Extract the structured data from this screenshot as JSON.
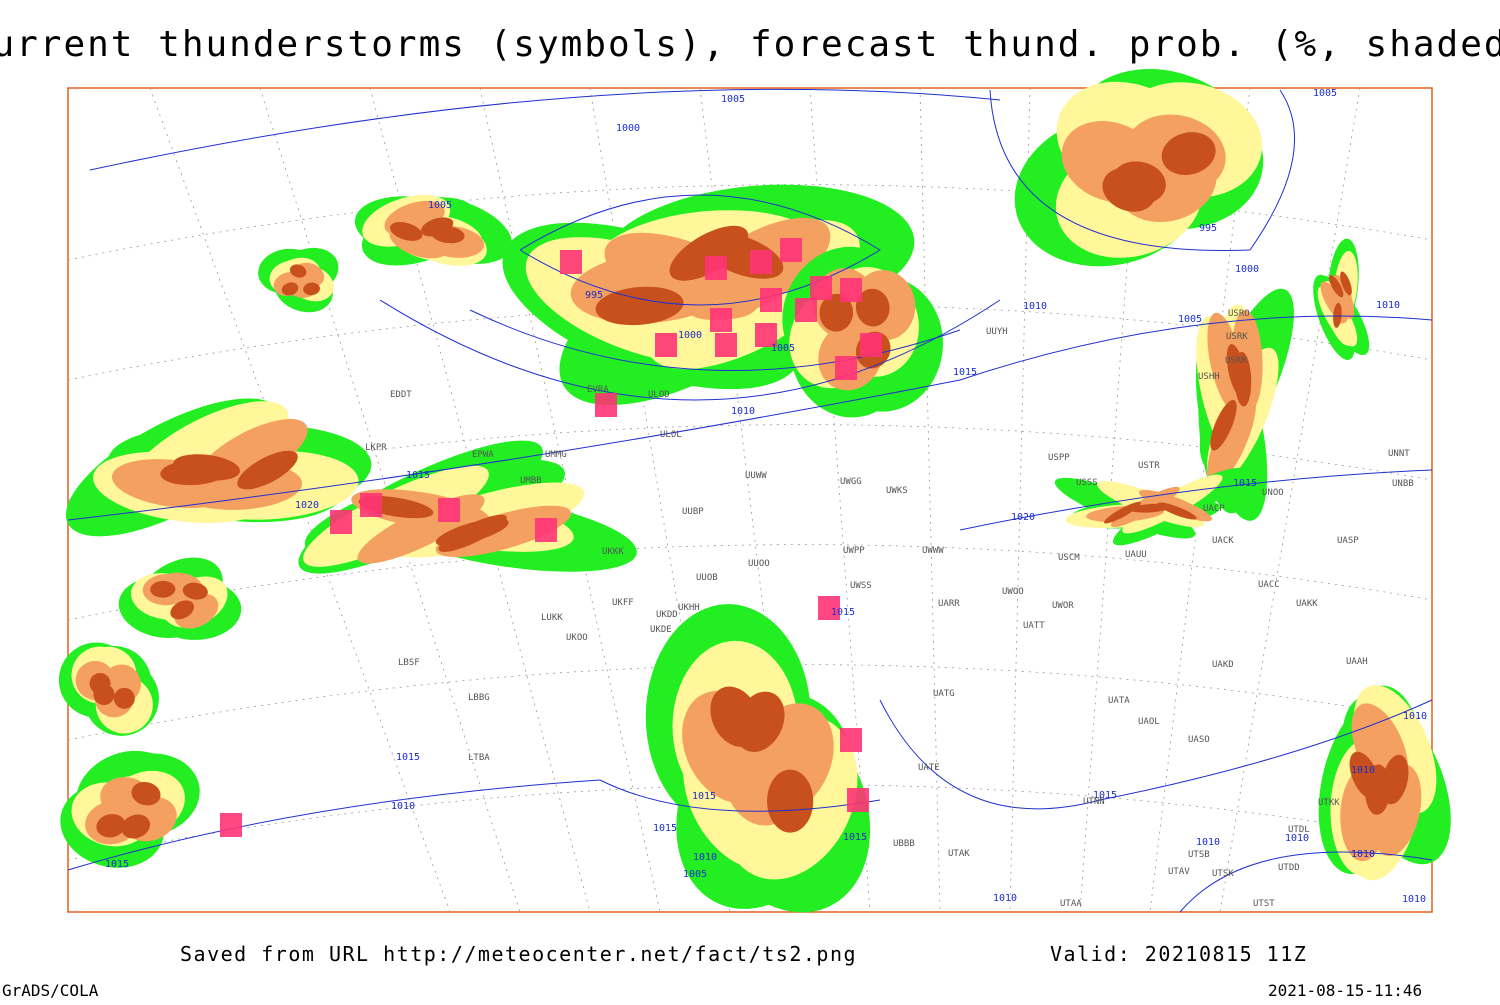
{
  "title": "Current thunderstorms (symbols), forecast thund. prob. (%, shaded)",
  "isobar_labels": [
    "1005",
    "1000",
    "1005",
    "995",
    "1000",
    "1005",
    "1010",
    "1015",
    "1020",
    "1015",
    "1010",
    "1005",
    "995",
    "1000",
    "1010",
    "1005",
    "1015",
    "1020",
    "1015",
    "1015",
    "1010",
    "1015",
    "1015",
    "1015",
    "1010",
    "1005",
    "1015",
    "1015",
    "1010",
    "1010",
    "1010",
    "1010",
    "1010",
    "1010",
    "1010"
  ],
  "station_labels": [
    "EDDT",
    "LKPR",
    "EPWA",
    "UMMG",
    "UMBB",
    "EVRA",
    "ULOD",
    "ULOL",
    "UUWW",
    "UWGG",
    "UWKS",
    "UUBP",
    "UKKK",
    "UUOO",
    "UUOB",
    "UWPP",
    "UWWW",
    "USCM",
    "UAUU",
    "UACK",
    "UASP",
    "UACC",
    "UAKK",
    "UWSS",
    "UARR",
    "UWOO",
    "UWOR",
    "UATT",
    "UAKD",
    "UAAH",
    "UATG",
    "UATA",
    "UAOL",
    "UASO",
    "UATE",
    "UTNN",
    "UTAK",
    "UTAA",
    "UTAV",
    "UTSK",
    "UTSB",
    "UTST",
    "UTDD",
    "UTDL",
    "UTKK",
    "UBBB",
    "LTBA",
    "LBBG",
    "LBSF",
    "LUKK",
    "UKOO",
    "UKFF",
    "UKDD",
    "UKDE",
    "UKHH",
    "UUYH",
    "USPP",
    "USSS",
    "USTR",
    "UNOO",
    "UNBB",
    "UNNT",
    "UACP",
    "USRR",
    "USRK",
    "USRO",
    "USHH"
  ],
  "footer": {
    "source": "Saved from URL http://meteocenter.net/fact/ts2.png",
    "valid": "Valid: 20210815 11Z",
    "software": "GrADS/COLA",
    "timestamp": "2021-08-15-11:46"
  }
}
